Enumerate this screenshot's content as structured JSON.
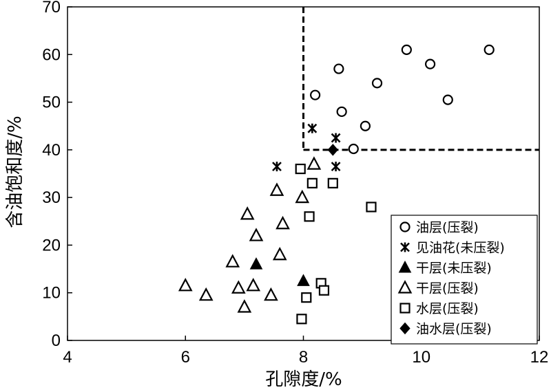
{
  "chart_data": {
    "type": "scatter",
    "xlabel": "孔隙度/%",
    "ylabel": "含油饱和度/%",
    "xlim": [
      4,
      12
    ],
    "ylim": [
      0,
      70
    ],
    "xticks": [
      "4",
      "6",
      "8",
      "10",
      "12"
    ],
    "yticks": [
      "0",
      "10",
      "20",
      "30",
      "40",
      "50",
      "60",
      "70"
    ],
    "grid": false,
    "legend_position": "bottom-right",
    "cutoff_lines": {
      "porosity": 8,
      "oil_saturation": 40
    },
    "series": [
      {
        "name": "油层(压裂)",
        "marker": "circle-open",
        "points": [
          [
            8.2,
            51.5
          ],
          [
            8.6,
            57
          ],
          [
            8.65,
            48
          ],
          [
            8.85,
            40.2
          ],
          [
            9.05,
            45
          ],
          [
            9.25,
            54
          ],
          [
            9.75,
            61
          ],
          [
            10.15,
            58
          ],
          [
            10.45,
            50.5
          ],
          [
            11.15,
            61
          ]
        ]
      },
      {
        "name": "见油花(未压裂)",
        "marker": "asterisk",
        "points": [
          [
            7.55,
            36.5
          ],
          [
            8.15,
            44.5
          ],
          [
            8.55,
            42.5
          ],
          [
            8.55,
            36.5
          ]
        ]
      },
      {
        "name": "干层(未压裂)",
        "marker": "triangle-filled",
        "points": [
          [
            7.2,
            16
          ],
          [
            8.0,
            12.5
          ]
        ]
      },
      {
        "name": "干层(压裂)",
        "marker": "triangle-open",
        "points": [
          [
            6.0,
            11.5
          ],
          [
            6.35,
            9.5
          ],
          [
            6.8,
            16.5
          ],
          [
            6.9,
            11
          ],
          [
            7.0,
            7
          ],
          [
            7.05,
            26.5
          ],
          [
            7.15,
            11.5
          ],
          [
            7.2,
            22
          ],
          [
            7.45,
            9.5
          ],
          [
            7.55,
            31.5
          ],
          [
            7.6,
            18
          ],
          [
            7.65,
            24.5
          ],
          [
            7.98,
            30
          ],
          [
            8.18,
            37
          ]
        ]
      },
      {
        "name": "水层(压裂)",
        "marker": "square-open",
        "points": [
          [
            7.97,
            4.5
          ],
          [
            7.95,
            36
          ],
          [
            8.05,
            9
          ],
          [
            8.1,
            26
          ],
          [
            8.15,
            33
          ],
          [
            8.3,
            12
          ],
          [
            8.35,
            10.5
          ],
          [
            8.5,
            33
          ],
          [
            9.15,
            28
          ]
        ]
      },
      {
        "name": "油水层(压裂)",
        "marker": "diamond-filled",
        "points": [
          [
            8.5,
            40
          ]
        ]
      }
    ]
  }
}
